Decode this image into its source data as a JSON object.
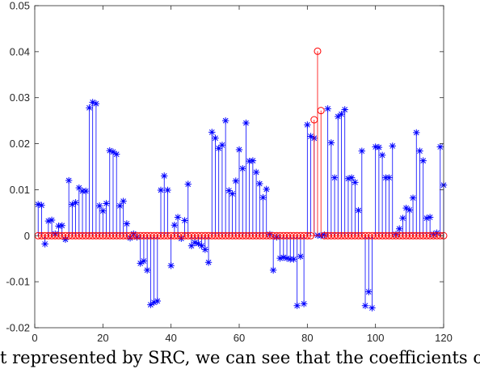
{
  "chart_data": {
    "type": "stem",
    "xlim": [
      0,
      120
    ],
    "ylim": [
      -0.02,
      0.05
    ],
    "x_ticks": [
      "0",
      "20",
      "40",
      "60",
      "80",
      "100",
      "120"
    ],
    "y_ticks": [
      "-0.02",
      "-0.01",
      "0",
      "0.01",
      "0.02",
      "0.03",
      "0.04",
      "0.05"
    ],
    "grid": false,
    "series": [
      {
        "marker": "asterisk",
        "color": "#0000ff",
        "x": [
          1,
          2,
          3,
          4,
          5,
          6,
          7,
          8,
          9,
          10,
          11,
          12,
          13,
          14,
          15,
          16,
          17,
          18,
          19,
          20,
          21,
          22,
          23,
          24,
          25,
          26,
          27,
          28,
          29,
          30,
          31,
          32,
          33,
          34,
          35,
          36,
          37,
          38,
          39,
          40,
          41,
          42,
          43,
          44,
          45,
          46,
          47,
          48,
          49,
          50,
          51,
          52,
          53,
          54,
          55,
          56,
          57,
          58,
          59,
          60,
          61,
          62,
          63,
          64,
          65,
          66,
          67,
          68,
          69,
          70,
          71,
          72,
          73,
          74,
          75,
          76,
          77,
          78,
          79,
          80,
          81,
          82,
          83,
          84,
          85,
          86,
          87,
          88,
          89,
          90,
          91,
          92,
          93,
          94,
          95,
          96,
          97,
          98,
          99,
          100,
          101,
          102,
          103,
          104,
          105,
          106,
          107,
          108,
          109,
          110,
          111,
          112,
          113,
          114,
          115,
          116,
          117,
          118,
          119,
          120
        ],
        "values": [
          0.0068,
          0.0066,
          -0.0018,
          0.0032,
          0.0034,
          0.0004,
          0.0021,
          0.0022,
          -0.0008,
          0.012,
          0.0068,
          0.0072,
          0.0104,
          0.0097,
          0.0097,
          0.0278,
          0.029,
          0.0287,
          0.0065,
          0.0054,
          0.007,
          0.0185,
          0.0182,
          0.0177,
          0.0065,
          0.0075,
          0.0026,
          -0.0005,
          0.0004,
          -0.0003,
          -0.006,
          -0.0055,
          -0.0075,
          -0.015,
          -0.0145,
          -0.0142,
          0.0099,
          0.013,
          0.0099,
          -0.0065,
          0.0023,
          0.004,
          -0.0006,
          0.0033,
          0.0112,
          -0.0022,
          -0.0015,
          -0.0017,
          -0.0022,
          -0.003,
          -0.0058,
          0.0225,
          0.0212,
          0.019,
          0.0197,
          0.025,
          0.0098,
          0.0091,
          0.0119,
          0.0187,
          0.0146,
          0.0245,
          0.0162,
          0.0163,
          0.0138,
          0.0113,
          0.0083,
          0.0101,
          0.0003,
          -0.0075,
          -0.0003,
          -0.0049,
          -0.0047,
          -0.0049,
          -0.0051,
          -0.0051,
          -0.0152,
          -0.0045,
          -0.0148,
          0.0241,
          0.0216,
          0.0212,
          0.0001,
          0.0,
          0.0002,
          0.0276,
          0.0202,
          0.0126,
          0.0259,
          0.0264,
          0.0274,
          0.0124,
          0.0126,
          0.0116,
          0.0055,
          0.0184,
          -0.0152,
          -0.0122,
          -0.0157,
          0.0193,
          0.0192,
          0.0175,
          0.0126,
          0.0126,
          0.0195,
          0.0003,
          0.0015,
          0.0038,
          0.006,
          0.0056,
          0.0082,
          0.0224,
          0.0184,
          0.0163,
          0.0038,
          0.004,
          0.0003,
          0.0006,
          0.0193,
          0.011
        ]
      },
      {
        "marker": "circle",
        "color": "#ff0000",
        "x": [
          1,
          2,
          3,
          4,
          5,
          6,
          7,
          8,
          9,
          10,
          11,
          12,
          13,
          14,
          15,
          16,
          17,
          18,
          19,
          20,
          21,
          22,
          23,
          24,
          25,
          26,
          27,
          28,
          29,
          30,
          31,
          32,
          33,
          34,
          35,
          36,
          37,
          38,
          39,
          40,
          41,
          42,
          43,
          44,
          45,
          46,
          47,
          48,
          49,
          50,
          51,
          52,
          53,
          54,
          55,
          56,
          57,
          58,
          59,
          60,
          61,
          62,
          63,
          64,
          65,
          66,
          67,
          68,
          69,
          70,
          71,
          72,
          73,
          74,
          75,
          76,
          77,
          78,
          79,
          80,
          81,
          82,
          83,
          84,
          85,
          86,
          87,
          88,
          89,
          90,
          91,
          92,
          93,
          94,
          95,
          96,
          97,
          98,
          99,
          100,
          101,
          102,
          103,
          104,
          105,
          106,
          107,
          108,
          109,
          110,
          111,
          112,
          113,
          114,
          115,
          116,
          117,
          118,
          119,
          120
        ],
        "values": [
          0,
          0,
          0,
          0,
          0,
          0,
          0,
          0,
          0,
          0,
          0,
          0,
          0,
          0,
          0,
          0,
          0,
          0,
          0,
          0,
          0,
          0,
          0,
          0,
          0,
          0,
          0,
          0,
          0,
          0,
          0,
          0,
          0,
          0,
          0,
          0,
          0,
          0,
          0,
          0,
          0,
          0,
          0,
          0,
          0,
          0,
          0,
          0,
          0,
          0,
          0,
          0,
          0,
          0,
          0,
          0,
          0,
          0,
          0,
          0,
          0,
          0,
          0,
          0,
          0,
          0,
          0,
          0,
          0,
          0,
          0,
          0,
          0,
          0,
          0,
          0,
          0,
          0,
          0,
          0,
          0,
          0.0252,
          0.0401,
          0.0272,
          0,
          0,
          0,
          0,
          0,
          0,
          0,
          0,
          0,
          0,
          0,
          0,
          0,
          0,
          0,
          0,
          0,
          0,
          0,
          0,
          0,
          0,
          0,
          0,
          0,
          0,
          0,
          0,
          0,
          0,
          0,
          0,
          0,
          0,
          0,
          0
        ]
      }
    ]
  },
  "caption": "t represented by SRC, we can see that the coefficients of"
}
